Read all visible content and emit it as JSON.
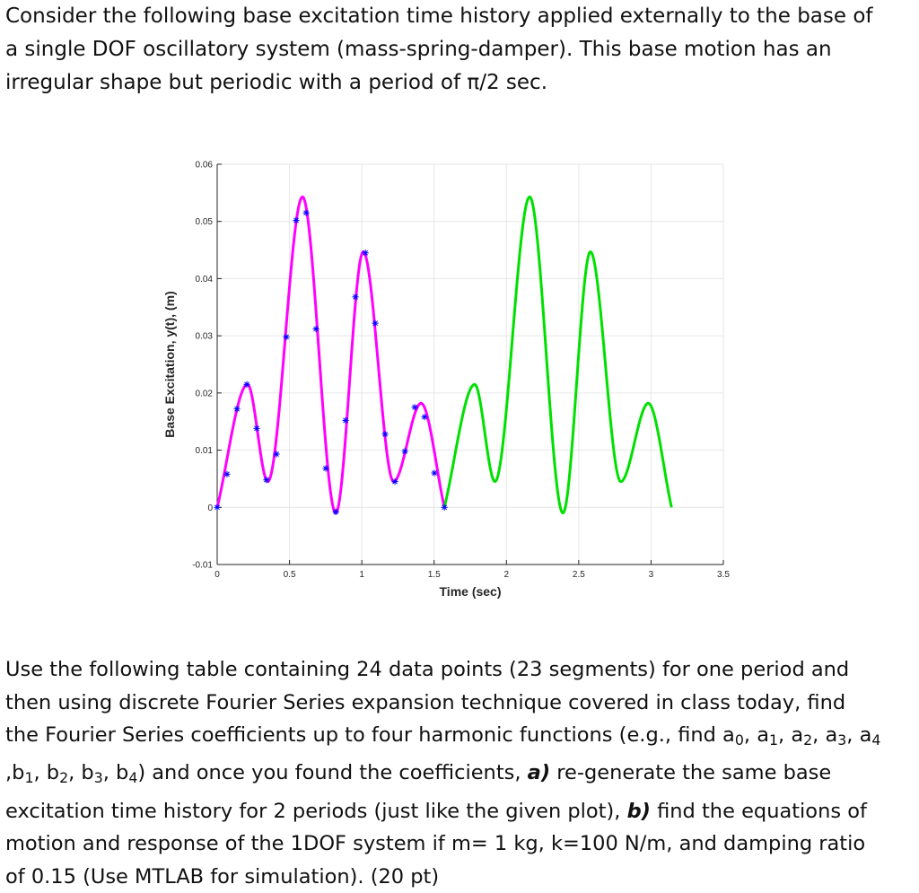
{
  "intro": {
    "line1": "Consider the following base excitation time history applied externally to the base of",
    "line2": "a single DOF oscillatory system (mass-spring-damper). This base motion has an",
    "line3": "irregular shape but periodic with a period of π/2 sec."
  },
  "task": {
    "l1": "Use the following table containing 24 data points (23 segments) for one period and",
    "l2": "then using discrete Fourier Series expansion technique covered in class today, find",
    "l3": "the Fourier Series coefficients up to four harmonic functions (e.g., find a",
    "a0": "0",
    "c1": ", a",
    "a1": "1",
    "c2": ", a",
    "a2": "2",
    "c3": ", a",
    "a3": "3",
    "c4": ", a",
    "a4": "4",
    "l4a": ",b",
    "b1": "1",
    "c5": ", b",
    "b2": "2",
    "c6": ", b",
    "b3": "3",
    "c7": ", b",
    "b4": "4",
    "l4b": ") and once you found the coefficients, ",
    "part_a": "a)",
    "l4c": " re-generate the same base",
    "l5a": "excitation time history for 2 periods (just like the given plot), ",
    "part_b": "b)",
    "l5b": " find the equations of",
    "l6": "motion and response of the 1DOF system if m= 1 kg, k=100 N/m, and damping ratio",
    "l7": "of 0.15 (Use MTLAB for simulation). (20 pt)"
  },
  "chart_data": {
    "type": "line",
    "xlabel": "Time (sec)",
    "ylabel": "Base Excitation, y(t), (m)",
    "xlim": [
      0,
      3.5
    ],
    "ylim": [
      -0.01,
      0.06
    ],
    "xticks": [
      0,
      0.5,
      1,
      1.5,
      2,
      2.5,
      3,
      3.5
    ],
    "xtick_labels": [
      "0",
      "0.5",
      "1",
      "1.5",
      "2",
      "2.5",
      "3",
      "3.5"
    ],
    "yticks": [
      -0.01,
      0,
      0.01,
      0.02,
      0.03,
      0.04,
      0.05,
      0.06
    ],
    "ytick_labels": [
      "-0.01",
      "0",
      "0.01",
      "0.02",
      "0.03",
      "0.04",
      "0.05",
      "0.06"
    ],
    "grid": true,
    "period": 1.5708,
    "curve_keyframes": [
      [
        0,
        0
      ],
      [
        0.21,
        0.0215
      ],
      [
        0.35,
        0.0045
      ],
      [
        0.59,
        0.0543
      ],
      [
        0.82,
        -0.001
      ],
      [
        1.01,
        0.0447
      ],
      [
        1.22,
        0.0045
      ],
      [
        1.41,
        0.0182
      ],
      [
        1.5708,
        0
      ]
    ],
    "series": [
      {
        "name": "",
        "color": "#ff00ff",
        "x_range": [
          0,
          1.5708
        ]
      },
      {
        "name": "",
        "color": "#00e000",
        "x_range": [
          1.5708,
          3.1416
        ]
      }
    ],
    "markers": {
      "color": "#0000ff",
      "symbol": "*",
      "points": [
        [
          0,
          0
        ],
        [
          0.068,
          0.0058
        ],
        [
          0.137,
          0.0172
        ],
        [
          0.205,
          0.0215
        ],
        [
          0.273,
          0.0138
        ],
        [
          0.341,
          0.0048
        ],
        [
          0.41,
          0.0093
        ],
        [
          0.478,
          0.0298
        ],
        [
          0.546,
          0.0502
        ],
        [
          0.615,
          0.0515
        ],
        [
          0.683,
          0.0312
        ],
        [
          0.751,
          0.0068
        ],
        [
          0.82,
          -0.0008
        ],
        [
          0.888,
          0.0152
        ],
        [
          0.956,
          0.0368
        ],
        [
          1.025,
          0.0445
        ],
        [
          1.093,
          0.0322
        ],
        [
          1.161,
          0.0128
        ],
        [
          1.229,
          0.0045
        ],
        [
          1.298,
          0.0098
        ],
        [
          1.366,
          0.0175
        ],
        [
          1.434,
          0.0158
        ],
        [
          1.502,
          0.006
        ],
        [
          1.571,
          0
        ]
      ]
    }
  }
}
